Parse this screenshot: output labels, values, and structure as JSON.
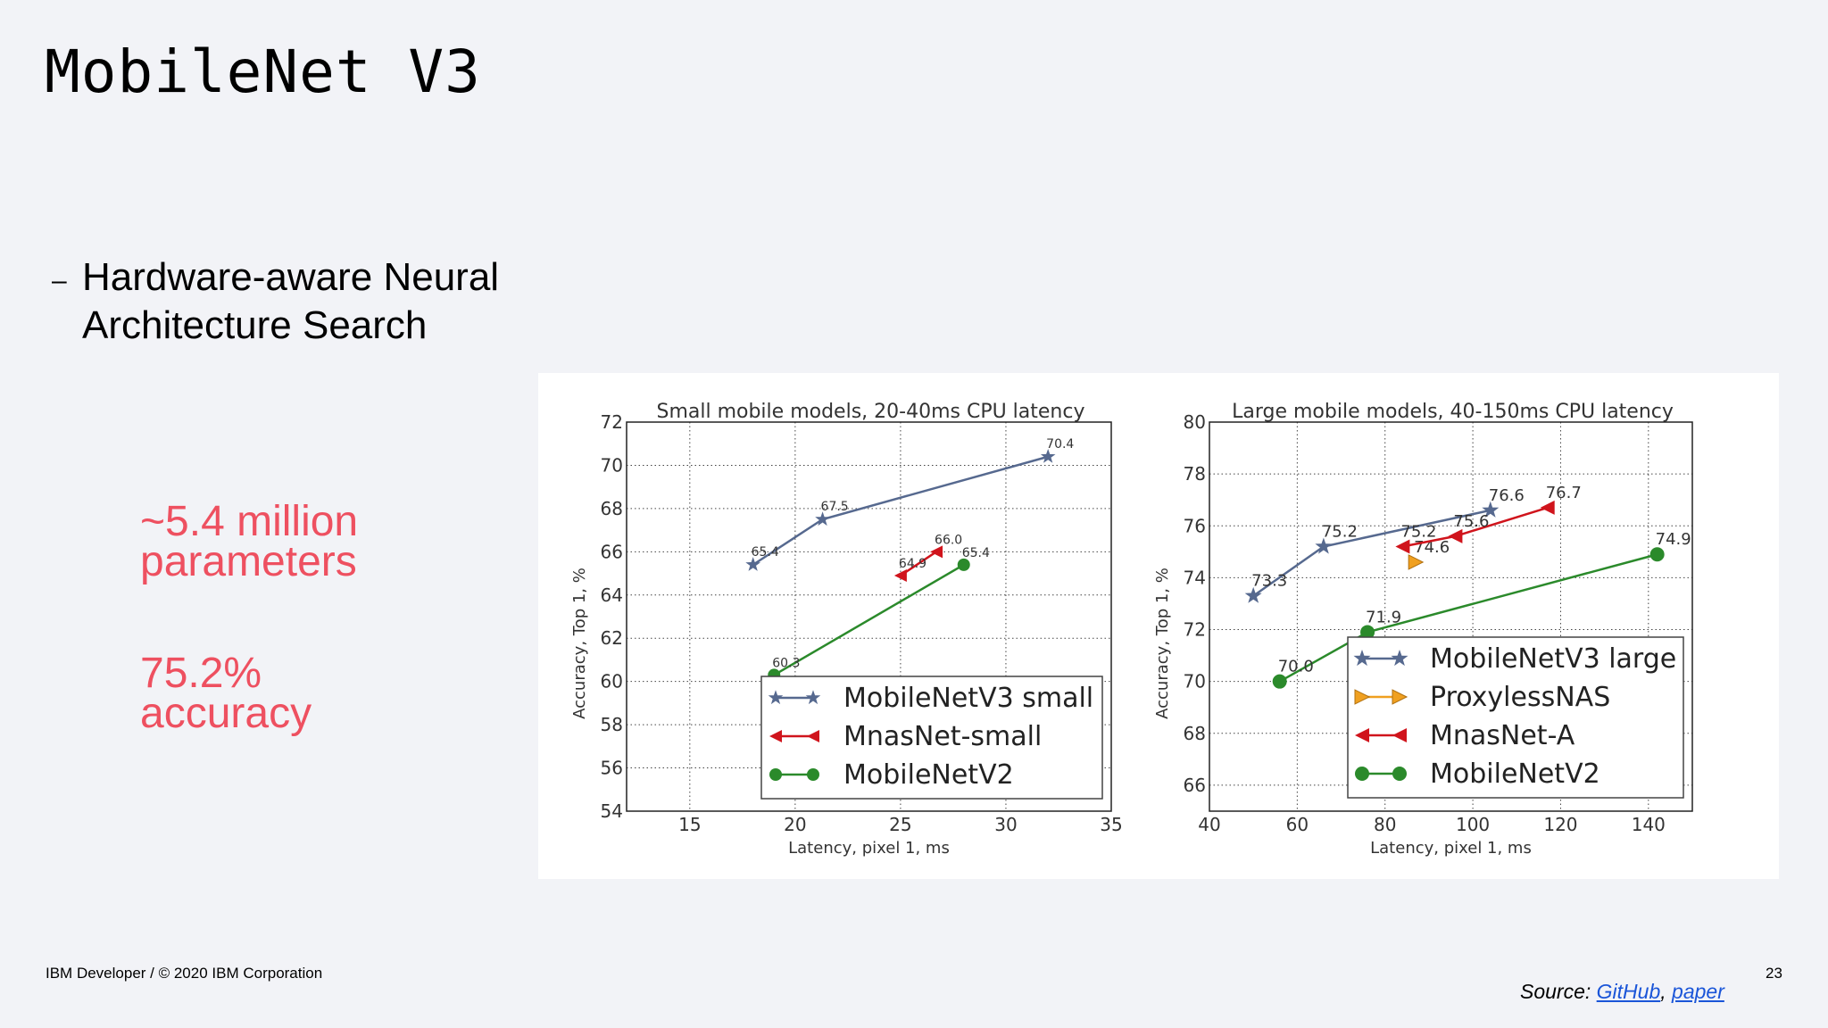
{
  "slide": {
    "title": "MobileNet V3",
    "bullet_dash": "–",
    "bullet": [
      "Hardware-aware Neural",
      "Architecture Search"
    ],
    "stat1": [
      "~5.4 million",
      "parameters"
    ],
    "stat2": [
      "75.2%",
      "accuracy"
    ],
    "footer": "IBM Developer / © 2020 IBM Corporation",
    "page_number": "23",
    "source_prefix": "Source: ",
    "source_link1": "GitHub",
    "source_sep": ", ",
    "source_link2": "paper",
    "accent_color": "#ee5060",
    "link_color": "#1a55d8"
  },
  "chart_data": [
    {
      "type": "line",
      "title": "Small mobile models, 20-40ms CPU latency",
      "xlabel": "Latency, pixel 1, ms",
      "ylabel": "Accuracy, Top 1, %",
      "xlim": [
        12,
        35
      ],
      "ylim": [
        54,
        72
      ],
      "xticks": [
        15,
        20,
        25,
        30,
        35
      ],
      "yticks": [
        54,
        56,
        58,
        60,
        62,
        64,
        66,
        68,
        70,
        72
      ],
      "grid": true,
      "legend_position": "bottom-right",
      "series": [
        {
          "name": "MobileNetV3 small",
          "marker": "star",
          "color": "#56698f",
          "points": [
            [
              18.0,
              65.4
            ],
            [
              21.3,
              67.5
            ],
            [
              32.0,
              70.4
            ]
          ],
          "labels": [
            "65.4",
            "67.5",
            "70.4"
          ]
        },
        {
          "name": "MnasNet-small",
          "marker": "triangle-left",
          "color": "#d0141c",
          "points": [
            [
              25.0,
              64.9
            ],
            [
              26.7,
              66.0
            ]
          ],
          "labels": [
            "64.9",
            "66.0"
          ]
        },
        {
          "name": "MobileNetV2",
          "marker": "circle",
          "color": "#2b8a2b",
          "points": [
            [
              19.0,
              60.3
            ],
            [
              28.0,
              65.4
            ]
          ],
          "labels": [
            "60.3",
            "65.4"
          ]
        }
      ]
    },
    {
      "type": "line",
      "title": "Large mobile models, 40-150ms CPU latency",
      "xlabel": "Latency, pixel 1, ms",
      "ylabel": "Accuracy, Top 1, %",
      "xlim": [
        40,
        150
      ],
      "ylim": [
        65,
        80
      ],
      "xticks": [
        40,
        60,
        80,
        100,
        120,
        140
      ],
      "yticks": [
        66,
        68,
        70,
        72,
        74,
        76,
        78,
        80
      ],
      "grid": true,
      "legend_position": "bottom-right",
      "series": [
        {
          "name": "MobileNetV3 large",
          "marker": "star",
          "color": "#56698f",
          "points": [
            [
              50,
              73.3
            ],
            [
              66,
              75.2
            ],
            [
              104,
              76.6
            ]
          ],
          "labels": [
            "73.3",
            "75.2",
            "76.6"
          ]
        },
        {
          "name": "ProxylessNAS",
          "marker": "triangle-right",
          "color": "#f0a020",
          "points": [
            [
              87,
              74.6
            ]
          ],
          "labels": [
            "74.6"
          ]
        },
        {
          "name": "MnasNet-A",
          "marker": "triangle-left",
          "color": "#d0141c",
          "points": [
            [
              84,
              75.2
            ],
            [
              96,
              75.6
            ],
            [
              117,
              76.7
            ]
          ],
          "labels": [
            "75.2",
            "75.6",
            "76.7"
          ]
        },
        {
          "name": "MobileNetV2",
          "marker": "circle",
          "color": "#2b8a2b",
          "points": [
            [
              56,
              70.0
            ],
            [
              76,
              71.9
            ],
            [
              142,
              74.9
            ]
          ],
          "labels": [
            "70.0",
            "71.9",
            "74.9"
          ]
        }
      ]
    }
  ]
}
